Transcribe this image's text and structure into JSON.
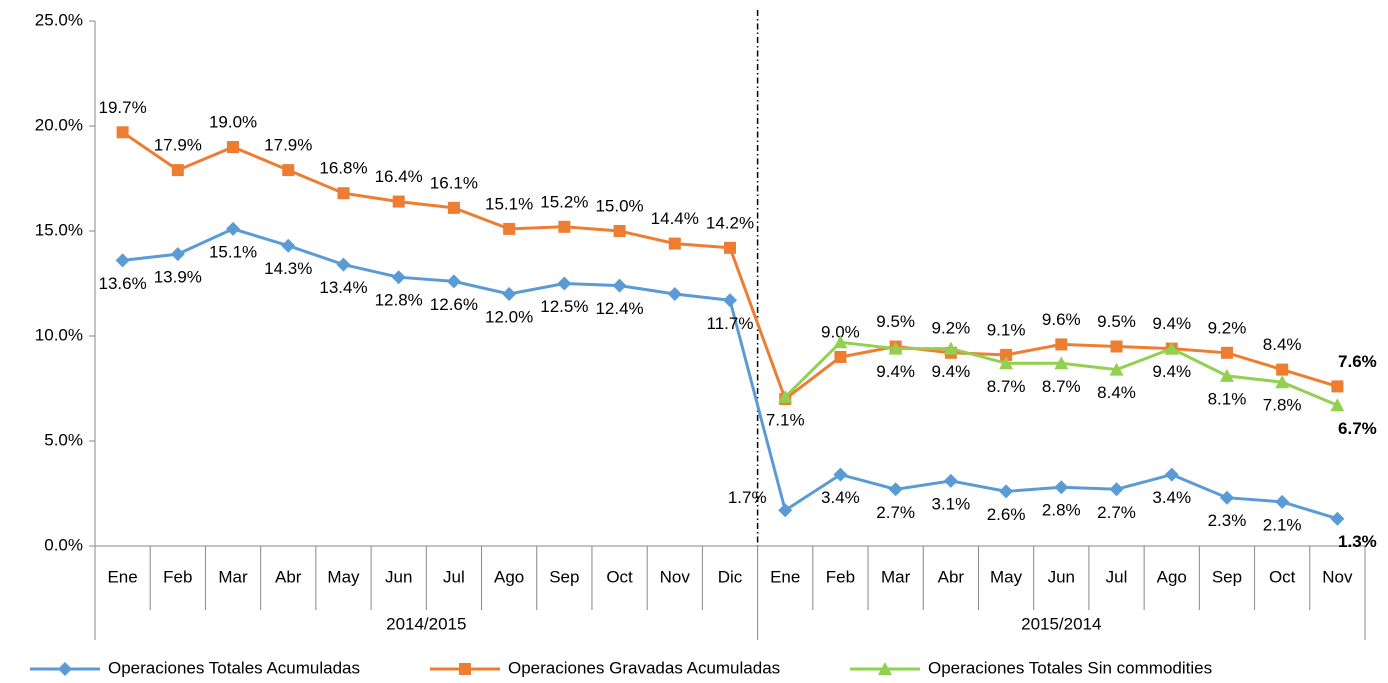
{
  "chart_data": {
    "type": "line",
    "groups": [
      {
        "name": "2014/2015",
        "categories": [
          "Ene",
          "Feb",
          "Mar",
          "Abr",
          "May",
          "Jun",
          "Jul",
          "Ago",
          "Sep",
          "Oct",
          "Nov",
          "Dic"
        ]
      },
      {
        "name": "2015/2014",
        "categories": [
          "Ene",
          "Feb",
          "Mar",
          "Abr",
          "May",
          "Jun",
          "Jul",
          "Ago",
          "Sep",
          "Oct",
          "Nov"
        ]
      }
    ],
    "series": [
      {
        "name": "Operaciones Totales Acumuladas",
        "color": "#5b9bd5",
        "marker": "diamond",
        "values": [
          13.6,
          13.9,
          15.1,
          14.3,
          13.4,
          12.8,
          12.6,
          12.0,
          12.5,
          12.4,
          12.0,
          11.7,
          1.7,
          3.4,
          2.7,
          3.1,
          2.6,
          2.8,
          2.7,
          3.4,
          2.3,
          2.1,
          1.3
        ],
        "value_labels": [
          "13.6%",
          "13.9%",
          "15.1%",
          "14.3%",
          "13.4%",
          "12.8%",
          "12.6%",
          "12.0%",
          "12.5%",
          "12.4%",
          null,
          "11.7%",
          "1.7%",
          "3.4%",
          "2.7%",
          "3.1%",
          "2.6%",
          "2.8%",
          "2.7%",
          "3.4%",
          "2.3%",
          "2.1%",
          "1.3%"
        ]
      },
      {
        "name": "Operaciones Gravadas Acumuladas",
        "color": "#ed7d31",
        "marker": "square",
        "values": [
          19.7,
          17.9,
          19.0,
          17.9,
          16.8,
          16.4,
          16.1,
          15.1,
          15.2,
          15.0,
          14.4,
          14.2,
          7.0,
          9.0,
          9.5,
          9.2,
          9.1,
          9.6,
          9.5,
          9.4,
          9.2,
          8.4,
          7.6
        ],
        "value_labels": [
          "19.7%",
          "17.9%",
          "19.0%",
          "17.9%",
          "16.8%",
          "16.4%",
          "16.1%",
          "15.1%",
          "15.2%",
          "15.0%",
          "14.4%",
          "14.2%",
          null,
          "9.0%",
          "9.5%",
          "9.2%",
          "9.1%",
          "9.6%",
          "9.5%",
          "9.4%",
          "9.2%",
          "8.4%",
          "7.6%"
        ]
      },
      {
        "name": "Operaciones Totales  Sin commodities",
        "color": "#92d050",
        "marker": "triangle",
        "values": [
          null,
          null,
          null,
          null,
          null,
          null,
          null,
          null,
          null,
          null,
          null,
          null,
          7.1,
          9.7,
          9.4,
          9.4,
          8.7,
          8.7,
          8.4,
          9.4,
          8.1,
          7.8,
          6.7
        ],
        "value_labels": [
          null,
          null,
          null,
          null,
          null,
          null,
          null,
          null,
          null,
          null,
          null,
          null,
          "7.1%",
          null,
          "9.4%",
          "9.4%",
          "8.7%",
          "8.7%",
          "8.4%",
          "9.4%",
          "8.1%",
          "7.8%",
          "6.7%"
        ]
      }
    ],
    "ylim": [
      0,
      25
    ],
    "yticks": [
      {
        "value": 0,
        "label": "0.0%"
      },
      {
        "value": 5,
        "label": "5.0%"
      },
      {
        "value": 10,
        "label": "10.0%"
      },
      {
        "value": 15,
        "label": "15.0%"
      },
      {
        "value": 20,
        "label": "20.0%"
      },
      {
        "value": 25,
        "label": "25.0%"
      }
    ],
    "grid": false,
    "legend": "bottom"
  }
}
